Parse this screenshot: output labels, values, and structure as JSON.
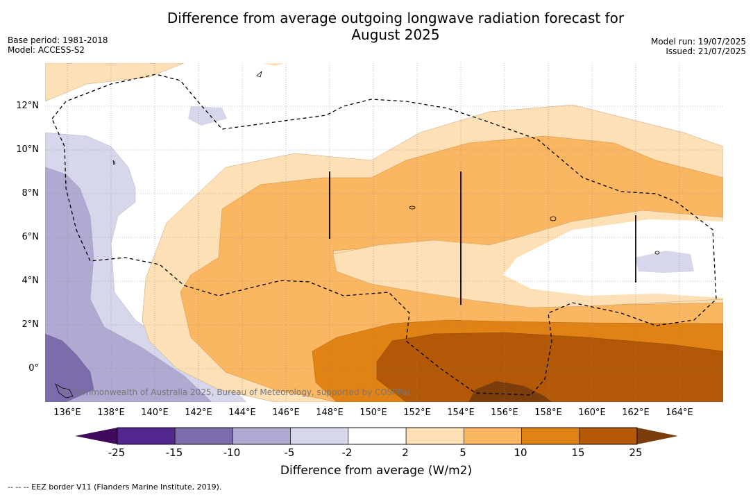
{
  "title_line1": "Difference from average outgoing longwave radiation forecast for",
  "title_line2": "August 2025",
  "base_period": "Base period: 1981-2018",
  "model": "Model: ACCESS-S2",
  "model_run": "Model run: 19/07/2025",
  "issued": "Issued: 21/07/2025",
  "copyright": "© Commonwealth of Australia 2025, Bureau of Meteorology, supported by COSPPac",
  "footnote": "--  --  -- EEZ border V11 (Flanders Marine Institute, 2019).",
  "lat_labels": [
    "12°N",
    "10°N",
    "8°N",
    "6°N",
    "4°N",
    "2°N",
    "0°"
  ],
  "lon_labels": [
    "136°E",
    "138°E",
    "140°E",
    "142°E",
    "144°E",
    "146°E",
    "148°E",
    "150°E",
    "152°E",
    "154°E",
    "156°E",
    "158°E",
    "160°E",
    "162°E",
    "164°E"
  ],
  "colorbar": {
    "label": "Difference from average (W/m2)",
    "ticks": [
      "-25",
      "-15",
      "-10",
      "-5",
      "-2",
      "2",
      "5",
      "10",
      "15",
      "25"
    ],
    "low_extend_color": "#3f0a5c",
    "high_extend_color": "#7a3d0b",
    "colors": [
      "#54278f",
      "#7c6cac",
      "#b0a9d2",
      "#d6d7ea",
      "#ffffff",
      "#fee0b6",
      "#fbb662",
      "#e08214",
      "#b35806"
    ]
  }
}
